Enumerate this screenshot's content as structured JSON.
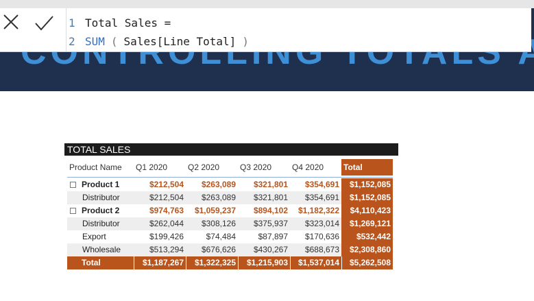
{
  "banner": {
    "title": "CONTROLLING TOTALS AND"
  },
  "formula": {
    "lines": [
      {
        "number": "1",
        "tokens": [
          "Total Sales ="
        ]
      },
      {
        "number": "2",
        "tokens": [
          "SUM",
          "(",
          "Sales[Line Total]",
          ")"
        ]
      }
    ]
  },
  "table": {
    "title": "TOTAL SALES",
    "headers": [
      "Product Name",
      "Q1 2020",
      "Q2 2020",
      "Q3 2020",
      "Q4 2020",
      "Total"
    ],
    "groups": [
      {
        "label": "Product 1",
        "values": [
          "$212,504",
          "$263,089",
          "$321,801",
          "$354,691",
          "$1,152,085"
        ],
        "children": [
          {
            "label": "Distributor",
            "values": [
              "$212,504",
              "$263,089",
              "$321,801",
              "$354,691",
              "$1,152,085"
            ]
          }
        ]
      },
      {
        "label": "Product 2",
        "values": [
          "$974,763",
          "$1,059,237",
          "$894,102",
          "$1,182,322",
          "$4,110,423"
        ],
        "children": [
          {
            "label": "Distributor",
            "values": [
              "$262,044",
              "$308,126",
              "$375,937",
              "$323,014",
              "$1,269,121"
            ]
          },
          {
            "label": "Export",
            "values": [
              "$199,426",
              "$74,484",
              "$87,897",
              "$170,636",
              "$532,442"
            ]
          },
          {
            "label": "Wholesale",
            "values": [
              "$513,294",
              "$676,626",
              "$430,267",
              "$688,673",
              "$2,308,860"
            ]
          }
        ]
      }
    ],
    "total": {
      "label": "Total",
      "values": [
        "$1,187,267",
        "$1,322,325",
        "$1,215,903",
        "$1,537,014",
        "$5,262,508"
      ]
    }
  }
}
